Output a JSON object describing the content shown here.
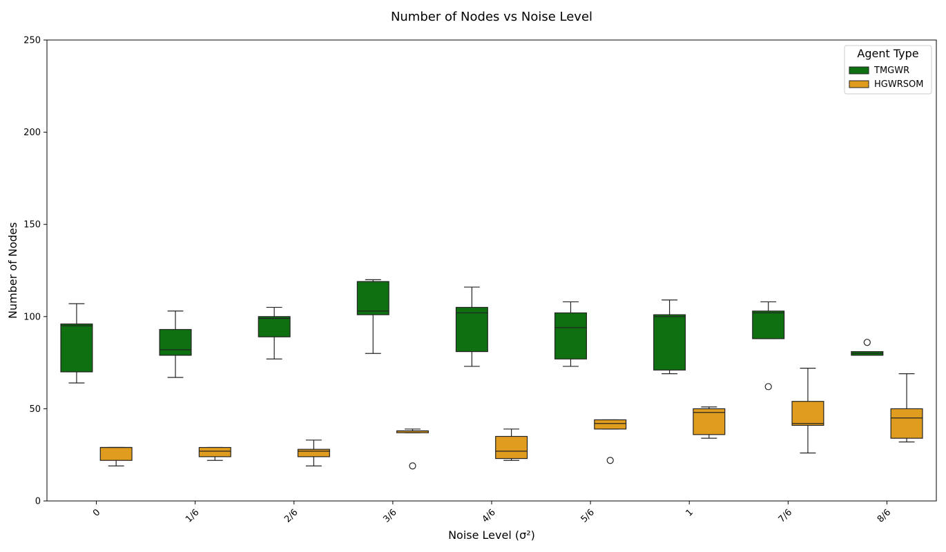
{
  "chart_data": {
    "type": "box",
    "title": "Number of Nodes vs Noise Level",
    "xlabel": "Noise Level (σ²)",
    "ylabel": "Number of Nodes",
    "ylim": [
      0,
      250
    ],
    "yticks": [
      0,
      50,
      100,
      150,
      200,
      250
    ],
    "categories": [
      "0",
      "1/6",
      "2/6",
      "3/6",
      "4/6",
      "5/6",
      "1",
      "7/6",
      "8/6"
    ],
    "legend": {
      "title": "Agent Type",
      "placement": "top-right"
    },
    "series": [
      {
        "name": "TMGWR",
        "color": "#0e7010",
        "boxes": [
          {
            "whisker_low": 64,
            "q1": 70,
            "median": 95,
            "q3": 96,
            "whisker_high": 107,
            "outliers": []
          },
          {
            "whisker_low": 67,
            "q1": 79,
            "median": 82,
            "q3": 93,
            "whisker_high": 103,
            "outliers": []
          },
          {
            "whisker_low": 77,
            "q1": 89,
            "median": 99,
            "q3": 100,
            "whisker_high": 105,
            "outliers": []
          },
          {
            "whisker_low": 80,
            "q1": 101,
            "median": 103,
            "q3": 119,
            "whisker_high": 120,
            "outliers": []
          },
          {
            "whisker_low": 73,
            "q1": 81,
            "median": 102,
            "q3": 105,
            "whisker_high": 116,
            "outliers": []
          },
          {
            "whisker_low": 73,
            "q1": 77,
            "median": 94,
            "q3": 102,
            "whisker_high": 108,
            "outliers": []
          },
          {
            "whisker_low": 69,
            "q1": 71,
            "median": 100,
            "q3": 101,
            "whisker_high": 109,
            "outliers": []
          },
          {
            "whisker_low": 88,
            "q1": 88,
            "median": 102,
            "q3": 103,
            "whisker_high": 108,
            "outliers": [
              62
            ]
          },
          {
            "whisker_low": 79,
            "q1": 79,
            "median": 80,
            "q3": 81,
            "whisker_high": 81,
            "outliers": [
              86
            ]
          }
        ]
      },
      {
        "name": "HGWRSOM",
        "color": "#e09c1e",
        "boxes": [
          {
            "whisker_low": 19,
            "q1": 22,
            "median": 29,
            "q3": 29,
            "whisker_high": 29,
            "outliers": []
          },
          {
            "whisker_low": 22,
            "q1": 24,
            "median": 27,
            "q3": 29,
            "whisker_high": 29,
            "outliers": []
          },
          {
            "whisker_low": 19,
            "q1": 24,
            "median": 27,
            "q3": 28,
            "whisker_high": 33,
            "outliers": []
          },
          {
            "whisker_low": 37,
            "q1": 37,
            "median": 38,
            "q3": 38,
            "whisker_high": 39,
            "outliers": [
              19
            ]
          },
          {
            "whisker_low": 22,
            "q1": 23,
            "median": 27,
            "q3": 35,
            "whisker_high": 39,
            "outliers": []
          },
          {
            "whisker_low": 39,
            "q1": 39,
            "median": 42,
            "q3": 44,
            "whisker_high": 44,
            "outliers": [
              22
            ]
          },
          {
            "whisker_low": 34,
            "q1": 36,
            "median": 48,
            "q3": 50,
            "whisker_high": 51,
            "outliers": []
          },
          {
            "whisker_low": 26,
            "q1": 41,
            "median": 42,
            "q3": 54,
            "whisker_high": 72,
            "outliers": []
          },
          {
            "whisker_low": 32,
            "q1": 34,
            "median": 45,
            "q3": 50,
            "whisker_high": 69,
            "outliers": []
          }
        ]
      }
    ]
  }
}
